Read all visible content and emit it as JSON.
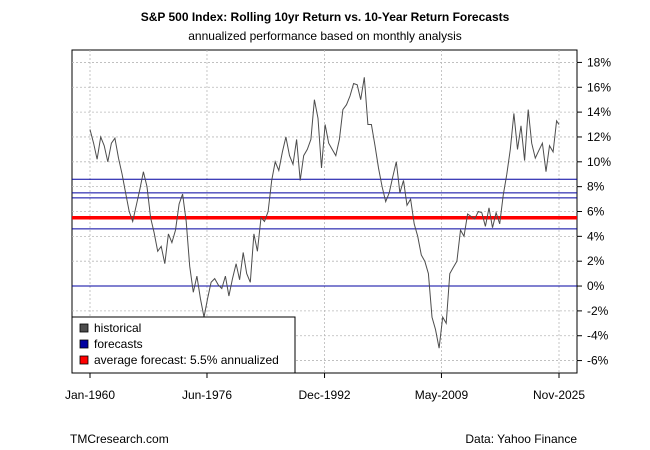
{
  "chart_data": {
    "type": "line",
    "title": "S&P 500 Index: Rolling 10yr Return vs. 10-Year Return Forecasts",
    "subtitle": "annualized performance based on monthly analysis",
    "x_tick_labels": [
      "Jan-1960",
      "Jun-1976",
      "Dec-1992",
      "May-2009",
      "Nov-2025"
    ],
    "x_tick_years": [
      1960.0,
      1976.42,
      1992.92,
      2009.33,
      2025.83
    ],
    "xlim": [
      1960.0,
      2025.83
    ],
    "ylim": [
      -7,
      19
    ],
    "y_ticks": [
      -6,
      -4,
      -2,
      0,
      2,
      4,
      6,
      8,
      10,
      12,
      14,
      16,
      18
    ],
    "y_tick_labels": [
      "-6%",
      "-4%",
      "-2%",
      "0%",
      "2%",
      "4%",
      "6%",
      "8%",
      "10%",
      "12%",
      "14%",
      "16%",
      "18%"
    ],
    "y_axis_side": "right",
    "grid": true,
    "legend_position": "bottom-left",
    "series": [
      {
        "name": "historical",
        "color": "#4d4d4d",
        "x": [
          1960.0,
          1960.5,
          1961.0,
          1961.5,
          1962.0,
          1962.5,
          1963.0,
          1963.5,
          1964.0,
          1964.5,
          1965.0,
          1965.5,
          1966.0,
          1966.5,
          1967.0,
          1967.5,
          1968.0,
          1968.5,
          1969.0,
          1969.5,
          1970.0,
          1970.5,
          1971.0,
          1971.5,
          1972.0,
          1972.5,
          1973.0,
          1973.5,
          1974.0,
          1974.5,
          1975.0,
          1975.5,
          1976.0,
          1976.5,
          1977.0,
          1977.5,
          1978.0,
          1978.5,
          1979.0,
          1979.5,
          1980.0,
          1980.5,
          1981.0,
          1981.5,
          1982.0,
          1982.5,
          1983.0,
          1983.5,
          1984.0,
          1984.5,
          1985.0,
          1985.5,
          1986.0,
          1986.5,
          1987.0,
          1987.5,
          1988.0,
          1988.5,
          1989.0,
          1989.5,
          1990.0,
          1990.5,
          1991.0,
          1991.5,
          1992.0,
          1992.5,
          1993.0,
          1993.5,
          1994.0,
          1994.5,
          1995.0,
          1995.5,
          1996.0,
          1996.5,
          1997.0,
          1997.5,
          1998.0,
          1998.5,
          1999.0,
          1999.5,
          2000.0,
          2000.5,
          2001.0,
          2001.5,
          2002.0,
          2002.5,
          2003.0,
          2003.5,
          2004.0,
          2004.5,
          2005.0,
          2005.5,
          2006.0,
          2006.5,
          2007.0,
          2007.5,
          2008.0,
          2008.5,
          2009.0,
          2009.5,
          2010.0,
          2010.5,
          2011.0,
          2011.5,
          2012.0,
          2012.5,
          2013.0,
          2013.5,
          2014.0,
          2014.5,
          2015.0,
          2015.5,
          2016.0,
          2016.5,
          2017.0,
          2017.5,
          2018.0,
          2018.5,
          2019.0,
          2019.5,
          2020.0,
          2020.5,
          2021.0,
          2021.5,
          2022.0,
          2022.5,
          2023.0,
          2023.5,
          2024.0,
          2024.5,
          2025.0,
          2025.5,
          2025.83
        ],
        "values": [
          12.6,
          11.5,
          10.2,
          12.0,
          11.3,
          10.0,
          11.5,
          11.9,
          10.3,
          9.0,
          7.5,
          6.0,
          5.2,
          6.5,
          7.8,
          9.2,
          8.0,
          5.5,
          4.3,
          2.8,
          3.2,
          1.8,
          4.2,
          3.5,
          4.5,
          6.6,
          7.4,
          5.2,
          1.6,
          -0.5,
          0.8,
          -1.0,
          -2.5,
          -1.0,
          0.3,
          0.6,
          0.1,
          -0.2,
          0.8,
          -0.8,
          0.6,
          1.8,
          0.5,
          2.7,
          1.0,
          0.3,
          4.2,
          2.8,
          5.5,
          5.2,
          6.0,
          8.5,
          10.0,
          9.3,
          10.8,
          12.0,
          10.5,
          9.8,
          11.8,
          8.5,
          10.5,
          11.0,
          11.8,
          15.0,
          13.5,
          9.5,
          13.0,
          11.5,
          11.0,
          10.5,
          11.8,
          14.2,
          14.6,
          15.3,
          16.3,
          16.2,
          15.0,
          16.8,
          13.0,
          13.0,
          11.3,
          9.5,
          8.0,
          6.8,
          7.5,
          8.8,
          10.0,
          7.5,
          8.5,
          6.5,
          7.0,
          5.0,
          4.0,
          2.5,
          2.0,
          1.0,
          -2.5,
          -3.5,
          -5.0,
          -2.5,
          -3.0,
          1.0,
          1.5,
          2.0,
          4.5,
          4.0,
          5.8,
          5.6,
          5.4,
          6.0,
          5.9,
          4.8,
          6.3,
          4.7,
          5.9,
          5.0,
          7.3,
          9.0,
          11.0,
          13.9,
          11.0,
          12.9,
          10.1,
          14.2,
          11.5,
          10.3,
          10.9,
          11.5,
          9.2,
          11.3,
          10.8,
          13.3,
          13.0
        ]
      },
      {
        "name": "forecasts",
        "color": "#0000a0",
        "values": [
          8.6,
          7.5,
          7.1,
          4.6,
          0.0
        ]
      },
      {
        "name": "average forecast: 5.5% annualized",
        "color": "#ff0000",
        "values": [
          5.5
        ]
      }
    ]
  },
  "footer": {
    "left": "TMCresearch.com",
    "right": "Data: Yahoo Finance"
  }
}
